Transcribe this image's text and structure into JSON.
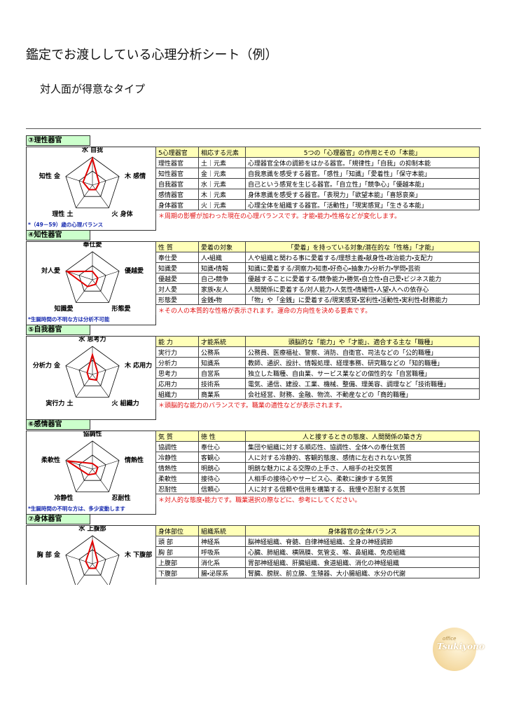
{
  "header": {
    "title": "鑑定でお渡ししている心理分析シート（例）",
    "subtitle": "対人面が得意なタイプ"
  },
  "sections": [
    {
      "title": "③理性器官",
      "radar": {
        "labels": [
          "水 自我",
          "木 感情",
          "火 身体",
          "理性 土",
          "知性 金"
        ],
        "values": [
          0.95,
          0.25,
          0.2,
          0.2,
          0.35
        ],
        "note": "*（49－59）歳の心理バランス"
      },
      "table": {
        "header": [
          "5心理器官",
          "相応する元素",
          "5つの「心理器官」の作用とその「本能」"
        ],
        "rows": [
          [
            "理性器官",
            "土｜元素",
            "心理器官全体の調節をはかる器官。「規律性」「自我」の抑制本能"
          ],
          [
            "知性器官",
            "金｜元素",
            "自我意識を感受する器官。「感性」「知識」「愛着性」「保守本能」"
          ],
          [
            "自我器官",
            "水｜元素",
            "自己という感覚を生じる器官。「自立性」「競争心」「優越本能」"
          ],
          [
            "感情器官",
            "木｜元素",
            "身体意識を感受する器官。「表現力」「欲望本能」「喜怒哀楽」"
          ],
          [
            "身体器官",
            "火｜元素",
            "心理全体を組織する器官。「活動性」「現実感覚」「生きる本能」"
          ]
        ],
        "footnote": "＊周期の影響が加わった現在の心理バランスです。才能・能力・性格などが変化します。"
      }
    },
    {
      "title": "④知性器官",
      "radar": {
        "labels": [
          "奉仕愛",
          "優越愛",
          "形態愛",
          "知識愛",
          "対人愛"
        ],
        "values": [
          0.3,
          0.2,
          0.2,
          0.3,
          0.95
        ],
        "note": "*生誕時間の不明な方は分析不可能"
      },
      "table": {
        "header": [
          "性 質",
          "愛着の対象",
          "「愛着」を持っている対象/潜在的な「性格」「才能」"
        ],
        "rows": [
          [
            "奉仕愛",
            "人・組織",
            "人や組織と関わる事に愛着する/理想主義・献身性・政治能力・支配力"
          ],
          [
            "知識愛",
            "知識・情報",
            "知識に愛着する/洞察力・知恵・好奇心・抽象力・分析力・学問・芸術"
          ],
          [
            "優越愛",
            "自己・競争",
            "優越することに愛着する/競争能力・勝気・自立性・自己愛・ビジネス能力"
          ],
          [
            "対人愛",
            "家族・友人",
            "人間関係に愛着する/対人能力・人気性・情緒性・人望・人への依存心"
          ],
          [
            "形態愛",
            "金銭・物",
            "「物」や「金銭」に愛着する/現実感覚・営利性・活動性・実利性・財務能力"
          ]
        ],
        "footnote": "＊その人の本質的な性格が表示されます。運命の方向性を決める要素です。"
      }
    },
    {
      "title": "⑤自我器官",
      "radar": {
        "labels": [
          "水 思考力",
          "木 応用力",
          "火 組織力",
          "実行力 土",
          "分析力 金"
        ],
        "values": [
          0.7,
          0.2,
          0.25,
          0.2,
          0.2
        ],
        "note": null
      },
      "table": {
        "header": [
          "能 力",
          "才能系統",
          "頭脳的な「能力」や「才能」、適合する主な「職種」"
        ],
        "rows": [
          [
            "実行力",
            "公務系",
            "公務員、医療福祉、警察、消防、自衛官、司法などの「公的職種」"
          ],
          [
            "分析力",
            "知識系",
            "教師、通訳、設計、情報処理、経理事務、研究職などの「知的職種」"
          ],
          [
            "思考力",
            "自営系",
            "独立した職種、自由業、サービス業などの個性的な「自営職種」"
          ],
          [
            "応用力",
            "技術系",
            "電気、通信、建設、工業、機械、整備、理美容、調理など「技術職種」"
          ],
          [
            "組織力",
            "商業系",
            "会社経営、財務、金融、物流、不動産などの「商的職種」"
          ]
        ],
        "footnote": "＊頭脳的な能力のバランスです。職業の適性などが表示されます。"
      }
    },
    {
      "title": "⑥感情器官",
      "radar": {
        "labels": [
          "協調性",
          "情熱性",
          "忍耐性",
          "冷静性",
          "柔軟性"
        ],
        "values": [
          0.2,
          0.2,
          0.2,
          0.25,
          0.95
        ],
        "note": "*生誕時間の不明な方は、多少変動します"
      },
      "table": {
        "header": [
          "気 質",
          "徳 性",
          "人と接するときの態度、人間関係の築き方"
        ],
        "rows": [
          [
            "協調性",
            "奉仕心",
            "集団や組織に対する順応性、協調性、全体への奉仕気質"
          ],
          [
            "冷静性",
            "客観心",
            "人に対する冷静的、客観的態度、感情に左右されない気質"
          ],
          [
            "情熱性",
            "明朗心",
            "明朗な魅力による交際の上手さ、人相手の社交気質"
          ],
          [
            "柔軟性",
            "接待心",
            "人相手の接待心やサービス心、柔軟に譲歩する気質"
          ],
          [
            "忍耐性",
            "信頼心",
            "人に対する信頼や信用を構築する、我慢や忍耐する気質"
          ]
        ],
        "footnote": "＊対人的な態度・能力です。職業選択の際などに、参考にしてください。"
      }
    },
    {
      "title": "⑦身体器官",
      "radar": {
        "labels": [
          "水 上腹部",
          "木 下腹部",
          null,
          null,
          "胸 部 金"
        ],
        "values": [
          0.8,
          0.2,
          0.2,
          0.2,
          0.25
        ],
        "note": null
      },
      "table": {
        "header": [
          "身体部位",
          "組織系統",
          "身体器官の全体バランス"
        ],
        "rows": [
          [
            "頭 部",
            "神経系",
            "脳神経組織、脊髄、自律神経組織、全身の神経調節"
          ],
          [
            "胸 部",
            "呼吸系",
            "心臓、肺組織、横隔膜、気管支、喉、鼻組織、免疫組織"
          ],
          [
            "上腹部",
            "消化系",
            "胃部神経組織、肝臓組織、食道組織、消化の神経組織"
          ],
          [
            "下腹部",
            "腸・泌尿系",
            "腎臓、膀胱、前立腺、生殖器、大小腸組織、水分の代謝"
          ]
        ],
        "footnote": null
      }
    }
  ],
  "logo": {
    "small": "office",
    "name": "Tsukiyono"
  }
}
